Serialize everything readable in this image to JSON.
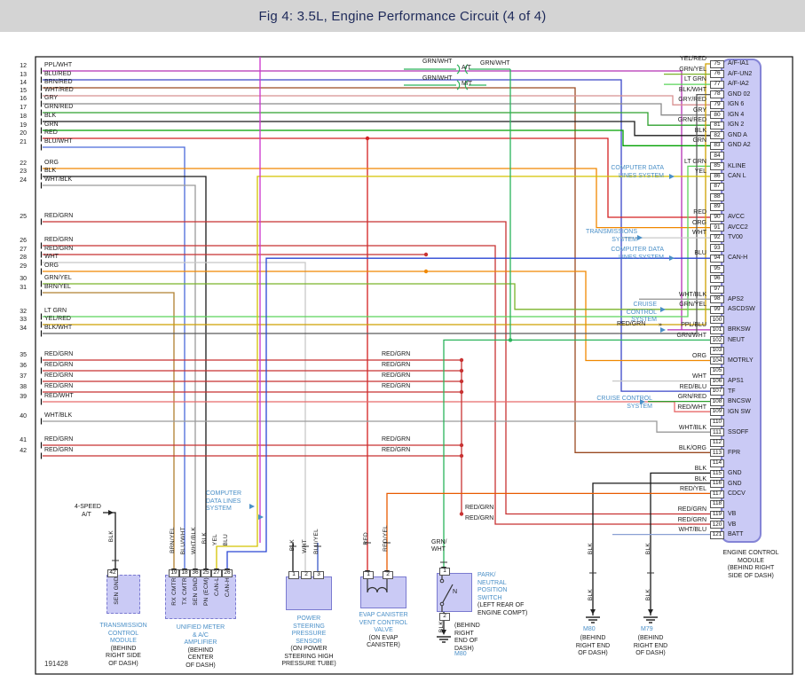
{
  "header": {
    "title": "Fig 4: 3.5L, Engine Performance Circuit (4 of 4)"
  },
  "diagram_id": "191428",
  "left_connector": {
    "pins": [
      {
        "pin": "12",
        "wire": "PPL/WHT"
      },
      {
        "pin": "13",
        "wire": "BLU/RED"
      },
      {
        "pin": "14",
        "wire": "BRN/RED"
      },
      {
        "pin": "15",
        "wire": "WHT/RED"
      },
      {
        "pin": "16",
        "wire": "GRY"
      },
      {
        "pin": "17",
        "wire": "GRN/RED"
      },
      {
        "pin": "18",
        "wire": "BLK"
      },
      {
        "pin": "19",
        "wire": "GRN"
      },
      {
        "pin": "20",
        "wire": "RED"
      },
      {
        "pin": "21",
        "wire": "BLU/WHT"
      },
      {
        "pin": "22",
        "wire": "ORG"
      },
      {
        "pin": "23",
        "wire": "BLK"
      },
      {
        "pin": "24",
        "wire": "WHT/BLK"
      },
      {
        "pin": "25",
        "wire": "RED/GRN"
      },
      {
        "pin": "26",
        "wire": "RED/GRN"
      },
      {
        "pin": "27",
        "wire": "RED/GRN"
      },
      {
        "pin": "28",
        "wire": "WHT"
      },
      {
        "pin": "29",
        "wire": "ORG"
      },
      {
        "pin": "30",
        "wire": "GRN/YEL"
      },
      {
        "pin": "31",
        "wire": "BRN/YEL"
      },
      {
        "pin": "32",
        "wire": "LT GRN"
      },
      {
        "pin": "33",
        "wire": "YEL/RED"
      },
      {
        "pin": "34",
        "wire": "BLK/WHT"
      },
      {
        "pin": "35",
        "wire": "RED/GRN"
      },
      {
        "pin": "36",
        "wire": "RED/GRN"
      },
      {
        "pin": "37",
        "wire": "RED/GRN"
      },
      {
        "pin": "38",
        "wire": "RED/GRN"
      },
      {
        "pin": "39",
        "wire": "RED/WHT"
      },
      {
        "pin": "40",
        "wire": "WHT/BLK"
      },
      {
        "pin": "41",
        "wire": "RED/GRN"
      },
      {
        "pin": "42",
        "wire": "RED/GRN"
      }
    ]
  },
  "ecm": {
    "caption_lines": [
      "ENGINE CONTROL",
      "MODULE",
      "(BEHIND RIGHT",
      "SIDE OF DASH)"
    ],
    "pins": [
      {
        "pin": "75",
        "wire": "YEL/RED",
        "signal": "A/F-IA1"
      },
      {
        "pin": "76",
        "wire": "GRN/YEL",
        "signal": "A/F-UN2"
      },
      {
        "pin": "77",
        "wire": "LT GRN",
        "signal": "A/F-IA2"
      },
      {
        "pin": "78",
        "wire": "BLK/WHT",
        "signal": "GND 02"
      },
      {
        "pin": "79",
        "wire": "GRY/RED",
        "signal": "IGN 6"
      },
      {
        "pin": "80",
        "wire": "GRY",
        "signal": "IGN 4"
      },
      {
        "pin": "81",
        "wire": "GRN/RED",
        "signal": "IGN 2"
      },
      {
        "pin": "82",
        "wire": "BLK",
        "signal": "GND A"
      },
      {
        "pin": "83",
        "wire": "GRN",
        "signal": "GND A2"
      },
      {
        "pin": "84",
        "wire": "",
        "signal": ""
      },
      {
        "pin": "85",
        "wire": "LT GRN",
        "signal": "KLINE"
      },
      {
        "pin": "86",
        "wire": "YEL",
        "signal": "CAN L"
      },
      {
        "pin": "87",
        "wire": "",
        "signal": ""
      },
      {
        "pin": "88",
        "wire": "",
        "signal": ""
      },
      {
        "pin": "89",
        "wire": "",
        "signal": ""
      },
      {
        "pin": "90",
        "wire": "RED",
        "signal": "AVCC"
      },
      {
        "pin": "91",
        "wire": "ORG",
        "signal": "AVCC2"
      },
      {
        "pin": "92",
        "wire": "WHT",
        "signal": "TV00"
      },
      {
        "pin": "93",
        "wire": "",
        "signal": ""
      },
      {
        "pin": "94",
        "wire": "BLU",
        "signal": "CAN-H"
      },
      {
        "pin": "95",
        "wire": "",
        "signal": ""
      },
      {
        "pin": "96",
        "wire": "",
        "signal": ""
      },
      {
        "pin": "97",
        "wire": "",
        "signal": ""
      },
      {
        "pin": "98",
        "wire": "WHT/BLK",
        "signal": "APS2"
      },
      {
        "pin": "99",
        "wire": "GRN/YEL",
        "signal": "ASCDSW"
      },
      {
        "pin": "100",
        "wire": "",
        "signal": ""
      },
      {
        "pin": "101",
        "wire": "PPL/BLU",
        "signal": "BRKSW"
      },
      {
        "pin": "102",
        "wire": "GRN/WHT",
        "signal": "NEUT"
      },
      {
        "pin": "103",
        "wire": "",
        "signal": ""
      },
      {
        "pin": "104",
        "wire": "ORG",
        "signal": "MOTRLY"
      },
      {
        "pin": "105",
        "wire": "",
        "signal": ""
      },
      {
        "pin": "106",
        "wire": "WHT",
        "signal": "APS1"
      },
      {
        "pin": "107",
        "wire": "RED/BLU",
        "signal": "TF"
      },
      {
        "pin": "108",
        "wire": "GRN/RED",
        "signal": "BNCSW"
      },
      {
        "pin": "109",
        "wire": "RED/WHT",
        "signal": "IGN SW"
      },
      {
        "pin": "110",
        "wire": "",
        "signal": ""
      },
      {
        "pin": "111",
        "wire": "WHT/BLK",
        "signal": "SSOFF"
      },
      {
        "pin": "112",
        "wire": "",
        "signal": ""
      },
      {
        "pin": "113",
        "wire": "BLK/ORG",
        "signal": "FPR"
      },
      {
        "pin": "114",
        "wire": "",
        "signal": ""
      },
      {
        "pin": "115",
        "wire": "BLK",
        "signal": "GND"
      },
      {
        "pin": "116",
        "wire": "BLK",
        "signal": "GND"
      },
      {
        "pin": "117",
        "wire": "RED/YEL",
        "signal": "CDCV"
      },
      {
        "pin": "118",
        "wire": "",
        "signal": ""
      },
      {
        "pin": "119",
        "wire": "RED/GRN",
        "signal": "VB"
      },
      {
        "pin": "120",
        "wire": "RED/GRN",
        "signal": "VB"
      },
      {
        "pin": "121",
        "wire": "WHT/BLU",
        "signal": "BATT"
      }
    ]
  },
  "at_note_lines": [
    "4-SPEED",
    "A/T"
  ],
  "floating_labels": [
    "GRN/WHT",
    "A/T",
    "GRN/WHT",
    "GRN/WHT",
    "M/T",
    "RED/GRN",
    "RED/GRN",
    "RED/GRN",
    "RED/GRN",
    "RED/GRN",
    "RED/GRN",
    "RED/GRN",
    "RED/GRN",
    "RED/GRN",
    "»",
    "GRN/",
    "WHT"
  ],
  "system_labels": [
    {
      "lines": [
        "COMPUTER DATA",
        "LINES SYSTEM"
      ]
    },
    {
      "lines": [
        "TRANSMISSIONS",
        "SYSTEM"
      ]
    },
    {
      "lines": [
        "COMPUTER DATA",
        "LINES SYSTEM"
      ]
    },
    {
      "lines": [
        "CRUISE",
        "CONTROL",
        "SYSTEM"
      ]
    },
    {
      "lines": [
        "CRUISE CONTROL",
        "SYSTEM"
      ]
    },
    {
      "lines": [
        "COMPUTER",
        "DATA LINES",
        "SYSTEM"
      ]
    }
  ],
  "components": [
    {
      "id": "transmission-control-module",
      "pin_labels": [
        "42"
      ],
      "internal_labels": [
        "SEN GND"
      ],
      "wire_labels": [
        "BLK"
      ],
      "name_lines": [
        "TRANSMISSION",
        "CONTROL",
        "MODULE"
      ],
      "location_lines": [
        "(BEHIND",
        "RIGHT SIDE",
        "OF DASH)"
      ]
    },
    {
      "id": "unified-meter-ac-amplifier",
      "pin_labels": [
        "19",
        "18",
        "36",
        "25",
        "27",
        "26"
      ],
      "internal_labels": [
        "RX CMTR",
        "TX CMTR",
        "SEN GND",
        "PN (ECM)",
        "CAN-L",
        "CAN-H"
      ],
      "wire_labels": [
        "BRN/YEL",
        "BLU/WHT",
        "WHT/BLK",
        "BLK",
        "YEL",
        "BLU"
      ],
      "name_lines": [
        "UNIFIED METER",
        "& A/C",
        "AMPLIFIER"
      ],
      "location_lines": [
        "(BEHIND",
        "CENTER",
        "OF DASH)"
      ]
    },
    {
      "id": "power-steering-pressure-sensor",
      "pin_labels": [
        "1",
        "2",
        "3"
      ],
      "internal_labels": [],
      "wire_labels": [
        "BLK",
        "WHT",
        "BLU/YEL"
      ],
      "name_lines": [
        "POWER",
        "STEERING",
        "PRESSURE",
        "SENSOR"
      ],
      "location_lines": [
        "(ON POWER",
        "STEERING HIGH",
        "PRESSURE TUBE)"
      ]
    },
    {
      "id": "evap-canister-vent-control-valve",
      "pin_labels": [
        "1",
        "2"
      ],
      "internal_labels": [],
      "wire_labels": [
        "RED",
        "RED/YEL"
      ],
      "name_lines": [
        "EVAP CANISTER",
        "VENT CONTROL",
        "VALVE"
      ],
      "location_lines": [
        "(ON EVAP",
        "CANISTER)"
      ]
    },
    {
      "id": "park-neutral-position-switch",
      "pin_labels": [
        "1",
        "2"
      ],
      "internal_labels": [
        "N"
      ],
      "wire_labels": [
        "BLK"
      ],
      "name_lines": [
        "PARK/",
        "NEUTRAL",
        "POSITION",
        "SWITCH"
      ],
      "location_lines": [
        "(LEFT REAR OF",
        "ENGINE COMPT)"
      ],
      "ground_id": "M80",
      "ground_location_lines": [
        "(BEHIND",
        "RIGHT",
        "END OF",
        "DASH)"
      ]
    },
    {
      "id": "ground-m80",
      "pin_labels": [],
      "internal_labels": [],
      "wire_labels": [
        "BLK",
        "BLK"
      ],
      "name_lines": [],
      "ground_id": "M80",
      "location_lines": [
        "(BEHIND",
        "RIGHT END",
        "OF DASH)"
      ]
    },
    {
      "id": "ground-m79",
      "pin_labels": [],
      "internal_labels": [],
      "wire_labels": [
        "BLK",
        "BLK"
      ],
      "name_lines": [],
      "ground_id": "M79",
      "location_lines": [
        "(BEHIND",
        "RIGHT END",
        "OF DASH)"
      ]
    }
  ]
}
